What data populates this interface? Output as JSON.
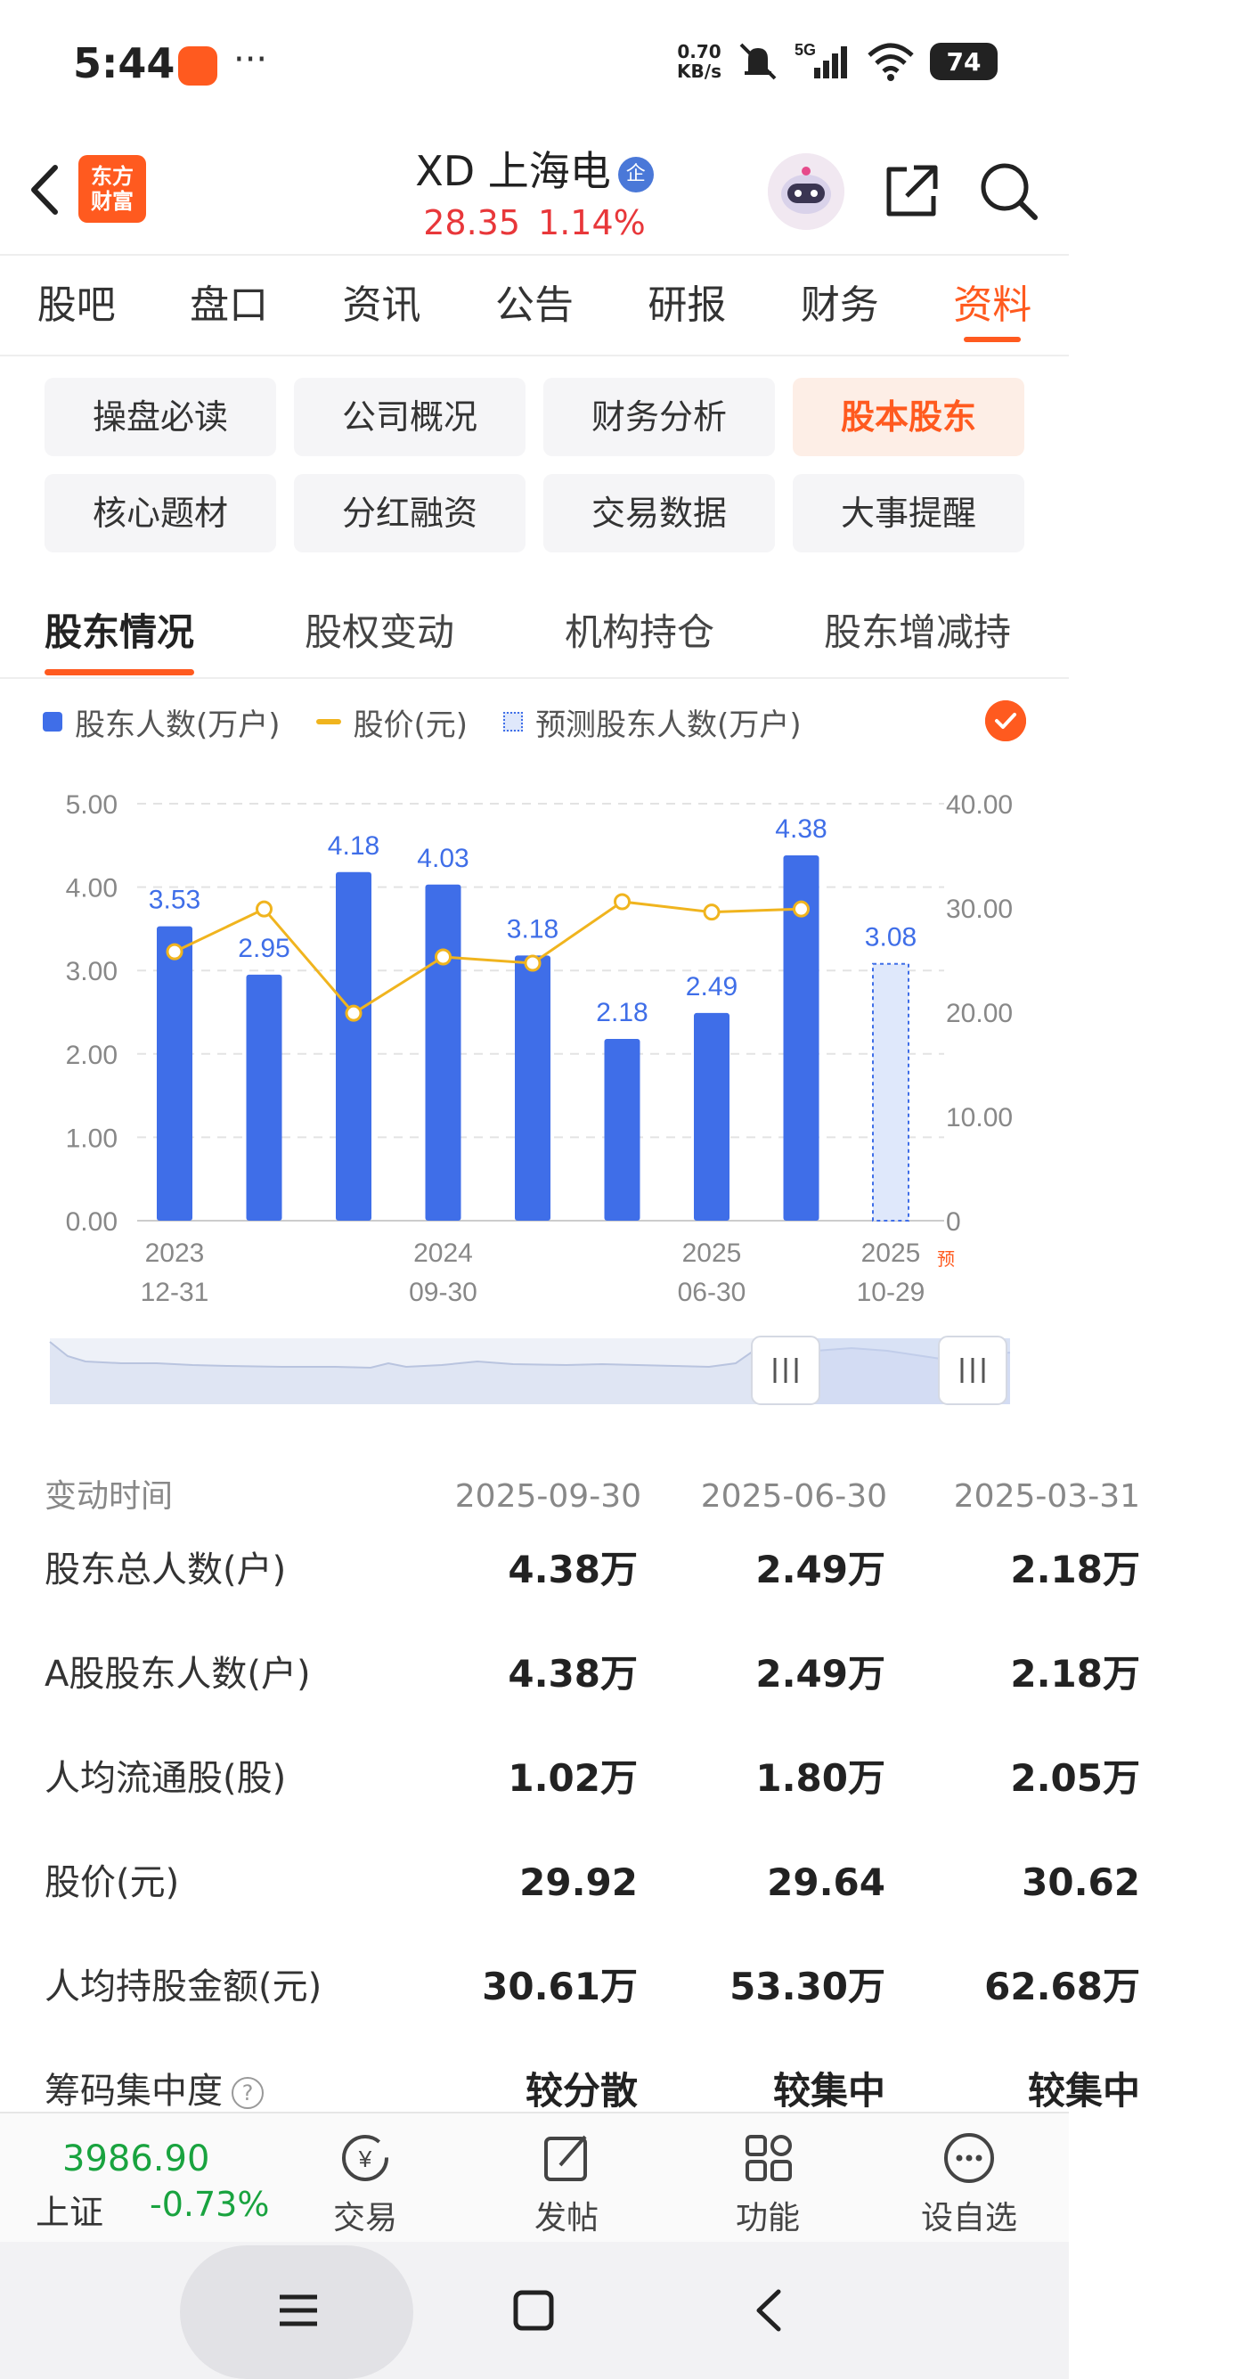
{
  "status_bar": {
    "time": "5:44",
    "dots": "···",
    "net_speed_value": "0.70",
    "net_speed_unit": "KB/s",
    "network": "5G",
    "battery": "74"
  },
  "header": {
    "logo_line1": "东方",
    "logo_line2": "财富",
    "stock_name": "XD 上海电",
    "badge": "企",
    "price": "28.35",
    "change_pct": "1.14%"
  },
  "main_tabs": [
    "股吧",
    "盘口",
    "资讯",
    "公告",
    "研报",
    "财务",
    "资料"
  ],
  "sub_buttons": [
    "操盘必读",
    "公司概况",
    "财务分析",
    "股本股东",
    "核心题材",
    "分红融资",
    "交易数据",
    "大事提醒"
  ],
  "section_tabs": [
    "股东情况",
    "股权变动",
    "机构持仓",
    "股东增减持"
  ],
  "legend": {
    "holders": "股东人数(万户)",
    "price": "股价(元)",
    "forecast": "预测股东人数(万户)"
  },
  "chart_data": {
    "type": "bar",
    "series": [
      {
        "name": "股东人数(万户)",
        "kind": "bar",
        "axis": "left",
        "values": [
          3.53,
          2.95,
          4.18,
          4.03,
          3.18,
          2.18,
          2.49,
          4.38,
          3.08
        ]
      },
      {
        "name": "股价(元)",
        "kind": "line",
        "axis": "right",
        "values": [
          25.8,
          29.9,
          19.9,
          25.3,
          24.7,
          30.6,
          29.6,
          29.9,
          null
        ]
      }
    ],
    "value_labels": [
      "3.53",
      "2.95",
      "4.18",
      "4.03",
      "3.18",
      "2.18",
      "2.49",
      "4.38",
      "3.08"
    ],
    "forecast_index": 8,
    "x_tick_labels": [
      {
        "index": 0,
        "line1": "2023",
        "line2": "12-31"
      },
      {
        "index": 3,
        "line1": "2024",
        "line2": "09-30"
      },
      {
        "index": 6,
        "line1": "2025",
        "line2": "06-30"
      },
      {
        "index": 8,
        "line1": "2025",
        "line2": "10-29"
      }
    ],
    "forecast_mark": "预",
    "y_left": {
      "ticks": [
        "5.00",
        "4.00",
        "3.00",
        "2.00",
        "1.00",
        "0.00"
      ],
      "range": [
        0,
        5
      ]
    },
    "y_right": {
      "ticks": [
        "40.00",
        "30.00",
        "20.00",
        "10.00",
        "0"
      ],
      "range": [
        0,
        40
      ]
    },
    "grid": true
  },
  "table": {
    "header": {
      "label": "变动时间",
      "cols": [
        "2025-09-30",
        "2025-06-30",
        "2025-03-31"
      ]
    },
    "rows": [
      {
        "label": "股东总人数(户)",
        "values": [
          "4.38万",
          "2.49万",
          "2.18万"
        ]
      },
      {
        "label": "A股股东人数(户)",
        "values": [
          "4.38万",
          "2.49万",
          "2.18万"
        ]
      },
      {
        "label": "人均流通股(股)",
        "values": [
          "1.02万",
          "1.80万",
          "2.05万"
        ]
      },
      {
        "label": "股价(元)",
        "values": [
          "29.92",
          "29.64",
          "30.62"
        ]
      },
      {
        "label": "人均持股金额(元)",
        "values": [
          "30.61万",
          "53.30万",
          "62.68万"
        ]
      },
      {
        "label": "筹码集中度",
        "values": [
          "较分散",
          "较集中",
          "较集中"
        ],
        "help": "?"
      }
    ]
  },
  "bottom_bar": {
    "index_value": "3986.90",
    "index_name": "上证",
    "index_change": "-0.73%",
    "nav": [
      "交易",
      "发帖",
      "功能",
      "设自选"
    ]
  }
}
